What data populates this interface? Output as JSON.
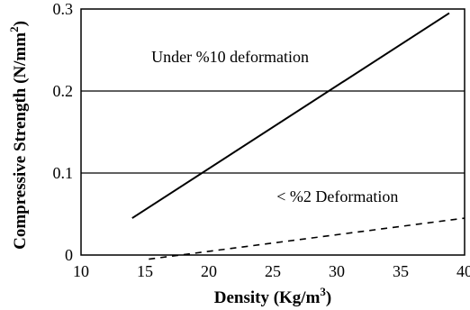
{
  "chart_data": {
    "type": "line",
    "xlim": [
      10,
      40
    ],
    "ylim": [
      0,
      0.3
    ],
    "x_ticks": [
      10,
      15,
      20,
      25,
      30,
      35,
      40
    ],
    "y_ticks": [
      0,
      0.1,
      0.2,
      0.3
    ],
    "x_tick_labels": [
      "10",
      "15",
      "20",
      "25",
      "30",
      "35",
      "40"
    ],
    "y_tick_labels": [
      "0",
      "0.1",
      "0.2",
      "0.3"
    ],
    "xlabel": "Density (Kg/m",
    "xlabel_sup": "3",
    "xlabel_end": ")",
    "ylabel": "Compressive Strength (N/mm",
    "ylabel_sup": "2",
    "ylabel_end": ")",
    "grid": "horizontal",
    "series": [
      {
        "style": "solid",
        "color": "#000000",
        "x": [
          14,
          38.8
        ],
        "y": [
          0.045,
          0.295
        ]
      },
      {
        "style": "dashed",
        "color": "#000000",
        "x": [
          15.3,
          40
        ],
        "y": [
          -0.005,
          0.045
        ]
      }
    ],
    "annotations": [
      {
        "text": "Under %10 deformation",
        "x": 15.5,
        "y": 0.235
      },
      {
        "text": "< %2 Deformation",
        "x": 25.3,
        "y": 0.065
      }
    ]
  }
}
